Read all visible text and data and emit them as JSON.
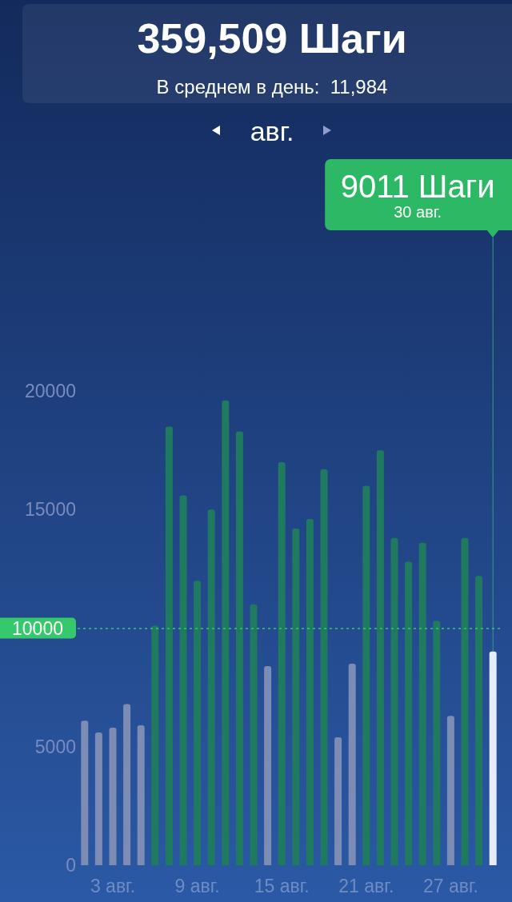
{
  "chart_data": {
    "type": "bar",
    "title": "359,509 Шаги",
    "subtitle": "В среднем в день:  11,984",
    "annotations": [
      "авг.",
      "9011 Шаги",
      "30 авг."
    ],
    "categories": [
      null,
      null,
      "3 авг.",
      null,
      null,
      null,
      null,
      null,
      "9 авг.",
      null,
      null,
      null,
      null,
      null,
      "15 авг.",
      null,
      null,
      null,
      null,
      null,
      "21 авг.",
      null,
      null,
      null,
      null,
      null,
      "27 авг.",
      null,
      null,
      null
    ],
    "values": [
      6100,
      5600,
      5800,
      6800,
      5900,
      10100,
      18500,
      15600,
      12000,
      15000,
      19600,
      18300,
      11000,
      8400,
      17000,
      14200,
      14600,
      16700,
      5400,
      8500,
      16000,
      17500,
      13800,
      12800,
      13600,
      10300,
      6300,
      13800,
      12200,
      9011
    ],
    "colors": [
      "#7d8cb4",
      "#7d8cb4",
      "#7d8cb4",
      "#7d8cb4",
      "#7d8cb4",
      "#1f7a60",
      "#1f7a60",
      "#1f7a60",
      "#1f7a60",
      "#1f7a60",
      "#1f7a60",
      "#1f7a60",
      "#1f7a60",
      "#7d8cb4",
      "#1f7a60",
      "#1f7a60",
      "#1f7a60",
      "#1f7a60",
      "#7d8cb4",
      "#7d8cb4",
      "#1f7a60",
      "#1f7a60",
      "#1f7a60",
      "#1f7a60",
      "#1f7a60",
      "#1f7a60",
      "#7d8cb4",
      "#1f7a60",
      "#1f7a60",
      "#e6ecf8"
    ],
    "ylim": [
      0,
      20000
    ],
    "yticks": [
      0,
      5000,
      15000,
      20000
    ],
    "ref_lines": [
      {
        "axis": "y",
        "value": 10000,
        "label": "10000",
        "color": "#36c96c",
        "line_style": "dotted"
      }
    ],
    "grid": false
  }
}
